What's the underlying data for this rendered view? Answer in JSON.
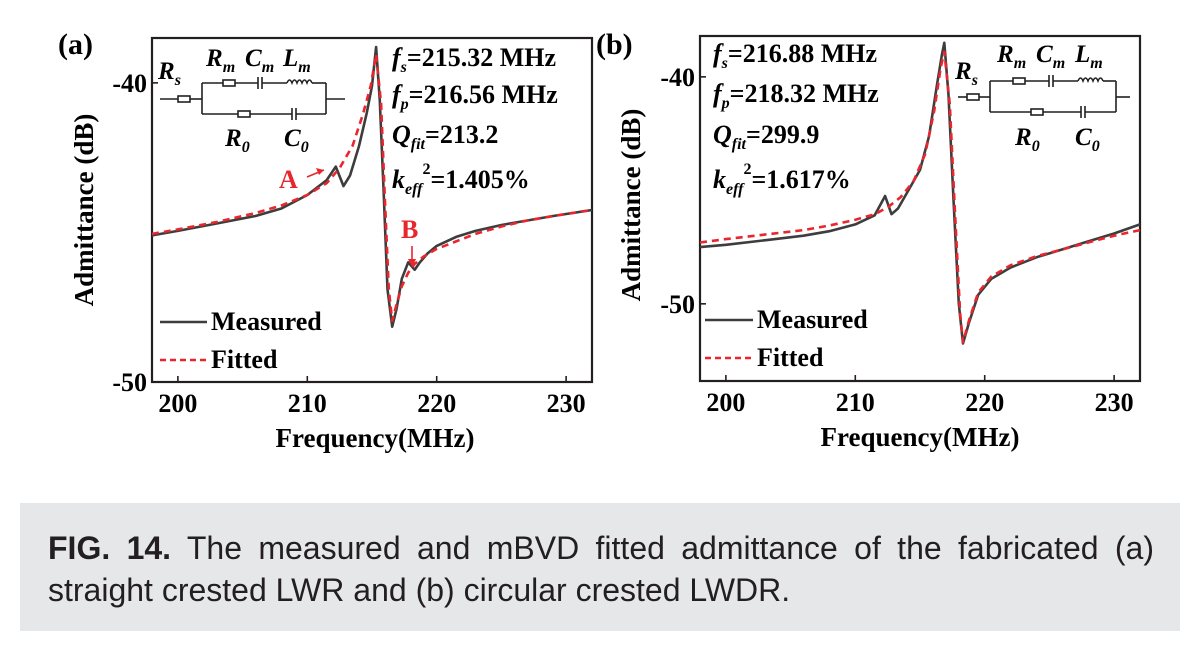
{
  "figure": {
    "caption": {
      "label": "FIG. 14.",
      "text": "The measured and mBVD fitted admittance of the fabricated (a) straight crested LWR and (b) circular crested LWDR."
    }
  },
  "chart_data": [
    {
      "panel_label": "(a)",
      "type": "line",
      "xlabel": "Frequency(MHz)",
      "ylabel": "Admittance (dB)",
      "xlim": [
        198,
        232
      ],
      "ylim": [
        -50,
        -38.5
      ],
      "xticks": [
        200,
        210,
        220,
        230
      ],
      "yticks": [
        -40,
        -50
      ],
      "legend": {
        "position": "bottom-left",
        "entries": [
          "Measured",
          "Fitted"
        ]
      },
      "annotations": {
        "fs": "215.32 MHz",
        "fp": "216.56 MHz",
        "qfit": "213.2",
        "keff2": "1.405%",
        "A": "A",
        "B": "B",
        "circuit": {
          "Rs": "R",
          "Rs_sub": "s",
          "Rm": "R",
          "Rm_sub": "m",
          "Cm": "C",
          "Cm_sub": "m",
          "Lm": "L",
          "Lm_sub": "m",
          "R0": "R",
          "R0_sub": "0",
          "C0": "C",
          "C0_sub": "0"
        }
      },
      "series": [
        {
          "name": "Measured",
          "color": "#3d3d3d",
          "style": "solid",
          "x": [
            198,
            200,
            203,
            206,
            208,
            210,
            211.5,
            212.2,
            212.8,
            213.3,
            214,
            214.6,
            215.0,
            215.32,
            215.6,
            215.9,
            216.2,
            216.56,
            216.9,
            217.3,
            217.8,
            218.3,
            218.7,
            219.3,
            220,
            221.5,
            223,
            225,
            227,
            229,
            232
          ],
          "y": [
            -45.1,
            -44.95,
            -44.7,
            -44.45,
            -44.2,
            -43.75,
            -43.25,
            -42.8,
            -43.45,
            -43.1,
            -42.1,
            -41.0,
            -40.1,
            -38.8,
            -40.6,
            -43.6,
            -46.9,
            -48.15,
            -47.55,
            -46.55,
            -46.0,
            -46.25,
            -46.0,
            -45.7,
            -45.45,
            -45.15,
            -44.95,
            -44.75,
            -44.6,
            -44.45,
            -44.25
          ]
        },
        {
          "name": "Fitted",
          "color": "#e8262e",
          "style": "dashed",
          "x": [
            198,
            200,
            203,
            206,
            208,
            210,
            211.5,
            212.5,
            213.5,
            214.3,
            214.9,
            215.32,
            215.7,
            216.0,
            216.3,
            216.56,
            216.9,
            217.3,
            217.8,
            218.3,
            219,
            220,
            221.5,
            223,
            225,
            227,
            229,
            232
          ],
          "y": [
            -45.05,
            -44.9,
            -44.65,
            -44.35,
            -44.1,
            -43.75,
            -43.35,
            -42.85,
            -42.1,
            -41.05,
            -40.1,
            -39.05,
            -40.7,
            -43.9,
            -46.9,
            -47.95,
            -47.4,
            -46.8,
            -46.35,
            -46.05,
            -45.8,
            -45.55,
            -45.3,
            -45.05,
            -44.8,
            -44.6,
            -44.45,
            -44.25
          ]
        }
      ]
    },
    {
      "panel_label": "(b)",
      "type": "line",
      "xlabel": "Frequency(MHz)",
      "ylabel": "Admittance (dB)",
      "xlim": [
        198,
        232
      ],
      "ylim": [
        -53.4,
        -38.2
      ],
      "xticks": [
        200,
        210,
        220,
        230
      ],
      "yticks": [
        -40,
        -50
      ],
      "legend": {
        "position": "bottom-left",
        "entries": [
          "Measured",
          "Fitted"
        ]
      },
      "annotations": {
        "fs": "216.88 MHz",
        "fp": "218.32 MHz",
        "qfit": "299.9",
        "keff2": "1.617%",
        "circuit": {
          "Rs": "R",
          "Rs_sub": "s",
          "Rm": "R",
          "Rm_sub": "m",
          "Cm": "C",
          "Cm_sub": "m",
          "Lm": "L",
          "Lm_sub": "m",
          "R0": "R",
          "R0_sub": "0",
          "C0": "C",
          "C0_sub": "0"
        }
      },
      "series": [
        {
          "name": "Measured",
          "color": "#3d3d3d",
          "style": "solid",
          "x": [
            198,
            200,
            203,
            206,
            208,
            210,
            211.5,
            212.3,
            212.8,
            213.3,
            214,
            215,
            215.7,
            216.3,
            216.7,
            216.88,
            217.2,
            217.6,
            218.0,
            218.32,
            218.8,
            219.5,
            220.5,
            222,
            224,
            226,
            228,
            230,
            232
          ],
          "y": [
            -47.5,
            -47.4,
            -47.2,
            -47.0,
            -46.8,
            -46.5,
            -46.1,
            -45.25,
            -46.05,
            -45.8,
            -45.1,
            -44.1,
            -42.6,
            -40.4,
            -39.0,
            -38.5,
            -40.8,
            -45.5,
            -50.0,
            -51.75,
            -50.8,
            -49.6,
            -48.9,
            -48.4,
            -47.95,
            -47.6,
            -47.25,
            -46.9,
            -46.5
          ]
        },
        {
          "name": "Fitted",
          "color": "#e8262e",
          "style": "dashed",
          "x": [
            198,
            200,
            203,
            206,
            208,
            210,
            211.5,
            212.5,
            213.5,
            214.5,
            215.4,
            216.1,
            216.6,
            216.88,
            217.3,
            217.7,
            218.1,
            218.32,
            218.8,
            219.5,
            220.5,
            222,
            224,
            226,
            228,
            230,
            232
          ],
          "y": [
            -47.3,
            -47.15,
            -46.95,
            -46.75,
            -46.55,
            -46.3,
            -46.05,
            -45.75,
            -45.3,
            -44.6,
            -43.4,
            -41.5,
            -39.6,
            -38.9,
            -41.2,
            -45.9,
            -50.4,
            -51.7,
            -50.7,
            -49.5,
            -48.8,
            -48.3,
            -47.9,
            -47.6,
            -47.3,
            -47.0,
            -46.75
          ]
        }
      ]
    }
  ]
}
